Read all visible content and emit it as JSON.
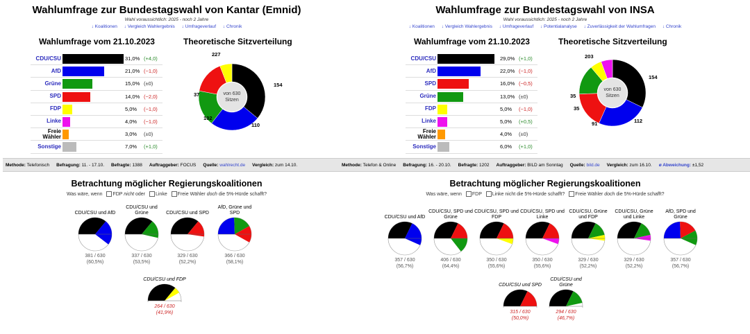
{
  "colors": {
    "cdu": "#000000",
    "afd": "#0000ee",
    "gruene": "#119911",
    "spd": "#ee1111",
    "fdp": "#ffff00",
    "linke": "#ee11ee",
    "fw": "#ff9900",
    "sonst": "#bbbbbb"
  },
  "left": {
    "title": "Wahlumfrage zur Bundestagswahl von Kantar (Emnid)",
    "subtitle": "Wahl voraussichtlich: 2025 - noch 2 Jahre",
    "links": [
      "↓ Koalitionen",
      "↓ Vergleich Wahlergebnis",
      "↓ Umfrageverlauf",
      "↓ Chronik"
    ],
    "poll_heading": "Wahlumfrage vom 21.10.2023",
    "seat_heading": "Theoretische Sitzverteilung",
    "parties": [
      {
        "name": "CDU/CSU",
        "pct": 31.0,
        "val": "31,0%",
        "chg": "(+4,0)",
        "dir": "pos",
        "color": "cdu"
      },
      {
        "name": "AfD",
        "pct": 21.0,
        "val": "21,0%",
        "chg": "(−1,0)",
        "dir": "neg",
        "color": "afd"
      },
      {
        "name": "Grüne",
        "pct": 15.0,
        "val": "15,0%",
        "chg": "(±0)",
        "dir": "neu",
        "color": "gruene"
      },
      {
        "name": "SPD",
        "pct": 14.0,
        "val": "14,0%",
        "chg": "(−2,0)",
        "dir": "neg",
        "color": "spd"
      },
      {
        "name": "FDP",
        "pct": 5.0,
        "val": "5,0%",
        "chg": "(−1,0)",
        "dir": "neg",
        "color": "fdp"
      },
      {
        "name": "Linke",
        "pct": 4.0,
        "val": "4,0%",
        "chg": "(−1,0)",
        "dir": "neg",
        "color": "linke"
      },
      {
        "name": "Freie Wähler",
        "pct": 3.0,
        "val": "3,0%",
        "chg": "(±0)",
        "dir": "neu",
        "color": "fw",
        "dark": true
      },
      {
        "name": "Sonstige",
        "pct": 7.0,
        "val": "7,0%",
        "chg": "(+1,0)",
        "dir": "pos",
        "color": "sonst"
      }
    ],
    "seats": {
      "center_line1": "von 630",
      "center_line2": "Sitzen",
      "segments": [
        {
          "party": "cdu",
          "seats": 227
        },
        {
          "party": "afd",
          "seats": 154
        },
        {
          "party": "gruene",
          "seats": 110
        },
        {
          "party": "spd",
          "seats": 102
        },
        {
          "party": "fdp",
          "seats": 37
        }
      ]
    },
    "info": {
      "methode_label": "Methode:",
      "methode": "Telefonisch",
      "befragung_label": "Befragung:",
      "befragung": "11. - 17.10.",
      "befragte_label": "Befragte:",
      "befragte": "1388",
      "auftrag_label": "Auftraggeber:",
      "auftrag": "FOCUS",
      "quelle_label": "Quelle:",
      "quelle": "wahlrecht.de",
      "vergleich_label": "Vergleich:",
      "vergleich": "zum 14.10."
    },
    "coalition_heading": "Betrachtung möglicher Regierungskoalitionen",
    "question": {
      "prefix": "Was wäre, wenn",
      "o1": "FDP",
      "o1b": "nicht",
      "o1c": "oder",
      "o2": "Linke",
      "o3": "Freie Wähler",
      "o3b": "doch",
      "o3c": "die 5%-Hürde schafft?"
    },
    "coalitions": [
      {
        "name": "CDU/CSU und AfD",
        "seats": "381 / 630",
        "pct": "(60,5%)",
        "parts": [
          {
            "p": "cdu",
            "s": 227
          },
          {
            "p": "afd",
            "s": 154
          }
        ]
      },
      {
        "name": "CDU/CSU und Grüne",
        "seats": "337 / 630",
        "pct": "(53,5%)",
        "parts": [
          {
            "p": "cdu",
            "s": 227
          },
          {
            "p": "gruene",
            "s": 110
          }
        ]
      },
      {
        "name": "CDU/CSU und SPD",
        "seats": "329 / 630",
        "pct": "(52,2%)",
        "parts": [
          {
            "p": "cdu",
            "s": 227
          },
          {
            "p": "spd",
            "s": 102
          }
        ]
      },
      {
        "name": "AfD, Grüne und SPD",
        "seats": "366 / 630",
        "pct": "(58,1%)",
        "parts": [
          {
            "p": "afd",
            "s": 154
          },
          {
            "p": "gruene",
            "s": 110
          },
          {
            "p": "spd",
            "s": 102
          }
        ]
      },
      {
        "name": "CDU/CSU und FDP",
        "seats": "264 / 630",
        "pct": "(41,9%)",
        "fail": true,
        "parts": [
          {
            "p": "cdu",
            "s": 227
          },
          {
            "p": "fdp",
            "s": 37
          }
        ]
      }
    ]
  },
  "right": {
    "title": "Wahlumfrage zur Bundestagswahl von INSA",
    "subtitle": "Wahl voraussichtlich: 2025 - noch 2 Jahre",
    "links": [
      "↓ Koalitionen",
      "↓ Vergleich Wahlergebnis",
      "↓ Umfrageverlauf",
      "↓ Potentialanalyse",
      "↓ Zuverlässigkeit der Wahlumfragen",
      "↓ Chronik"
    ],
    "poll_heading": "Wahlumfrage vom 21.10.2023",
    "seat_heading": "Theoretische Sitzverteilung",
    "parties": [
      {
        "name": "CDU/CSU",
        "pct": 29.0,
        "val": "29,0%",
        "chg": "(+1,0)",
        "dir": "pos",
        "color": "cdu"
      },
      {
        "name": "AfD",
        "pct": 22.0,
        "val": "22,0%",
        "chg": "(−1,0)",
        "dir": "neg",
        "color": "afd"
      },
      {
        "name": "SPD",
        "pct": 16.0,
        "val": "16,0%",
        "chg": "(−0,5)",
        "dir": "neg",
        "color": "spd"
      },
      {
        "name": "Grüne",
        "pct": 13.0,
        "val": "13,0%",
        "chg": "(±0)",
        "dir": "neu",
        "color": "gruene"
      },
      {
        "name": "FDP",
        "pct": 5.0,
        "val": "5,0%",
        "chg": "(−1,0)",
        "dir": "neg",
        "color": "fdp"
      },
      {
        "name": "Linke",
        "pct": 5.0,
        "val": "5,0%",
        "chg": "(+0,5)",
        "dir": "pos",
        "color": "linke"
      },
      {
        "name": "Freie Wähler",
        "pct": 4.0,
        "val": "4,0%",
        "chg": "(±0)",
        "dir": "neu",
        "color": "fw",
        "dark": true
      },
      {
        "name": "Sonstige",
        "pct": 6.0,
        "val": "6,0%",
        "chg": "(+1,0)",
        "dir": "pos",
        "color": "sonst"
      }
    ],
    "seats": {
      "center_line1": "von 630",
      "center_line2": "Sitzen",
      "segments": [
        {
          "party": "cdu",
          "seats": 203
        },
        {
          "party": "afd",
          "seats": 154
        },
        {
          "party": "spd",
          "seats": 112
        },
        {
          "party": "gruene",
          "seats": 91
        },
        {
          "party": "fdp",
          "seats": 35
        },
        {
          "party": "linke",
          "seats": 35
        }
      ]
    },
    "info": {
      "methode_label": "Methode:",
      "methode": "Telefon & Online",
      "befragung_label": "Befragung:",
      "befragung": "16. - 20.10.",
      "befragte_label": "Befragte:",
      "befragte": "1202",
      "auftrag_label": "Auftraggeber:",
      "auftrag": "BILD am Sonntag",
      "quelle_label": "Quelle:",
      "quelle": "bild.de",
      "vergleich_label": "Vergleich:",
      "vergleich": "zum 16.10.",
      "abw_label": "ø Abweichung:",
      "abw": "±1,52"
    },
    "coalition_heading": "Betrachtung möglicher Regierungskoalitionen",
    "question": {
      "prefix": "Was wäre, wenn",
      "o1": "FDP",
      "o2": "Linke nicht",
      "o2b": "die 5%-Hürde schafft?",
      "o3": "Freie Wähler",
      "o3b": "doch",
      "o3c": "die 5%-Hürde schafft?"
    },
    "coalitions": [
      {
        "name": "CDU/CSU und AfD",
        "seats": "357 / 630",
        "pct": "(56,7%)",
        "parts": [
          {
            "p": "cdu",
            "s": 203
          },
          {
            "p": "afd",
            "s": 154
          }
        ]
      },
      {
        "name": "CDU/CSU, SPD und Grüne",
        "seats": "406 / 630",
        "pct": "(64,4%)",
        "parts": [
          {
            "p": "cdu",
            "s": 203
          },
          {
            "p": "spd",
            "s": 112
          },
          {
            "p": "gruene",
            "s": 91
          }
        ]
      },
      {
        "name": "CDU/CSU, SPD und FDP",
        "seats": "350 / 630",
        "pct": "(55,6%)",
        "parts": [
          {
            "p": "cdu",
            "s": 203
          },
          {
            "p": "spd",
            "s": 112
          },
          {
            "p": "fdp",
            "s": 35
          }
        ]
      },
      {
        "name": "CDU/CSU, SPD und Linke",
        "seats": "350 / 630",
        "pct": "(55,6%)",
        "parts": [
          {
            "p": "cdu",
            "s": 203
          },
          {
            "p": "spd",
            "s": 112
          },
          {
            "p": "linke",
            "s": 35
          }
        ]
      },
      {
        "name": "CDU/CSU, Grüne und FDP",
        "seats": "329 / 630",
        "pct": "(52,2%)",
        "parts": [
          {
            "p": "cdu",
            "s": 203
          },
          {
            "p": "gruene",
            "s": 91
          },
          {
            "p": "fdp",
            "s": 35
          }
        ]
      },
      {
        "name": "CDU/CSU, Grüne und Linke",
        "seats": "329 / 630",
        "pct": "(52,2%)",
        "parts": [
          {
            "p": "cdu",
            "s": 203
          },
          {
            "p": "gruene",
            "s": 91
          },
          {
            "p": "linke",
            "s": 35
          }
        ]
      },
      {
        "name": "AfD, SPD und Grüne",
        "seats": "357 / 630",
        "pct": "(56,7%)",
        "parts": [
          {
            "p": "afd",
            "s": 154
          },
          {
            "p": "spd",
            "s": 112
          },
          {
            "p": "gruene",
            "s": 91
          }
        ]
      },
      {
        "name": "CDU/CSU und SPD",
        "seats": "315 / 630",
        "pct": "(50,0%)",
        "fail": true,
        "parts": [
          {
            "p": "cdu",
            "s": 203
          },
          {
            "p": "spd",
            "s": 112
          }
        ]
      },
      {
        "name": "CDU/CSU und Grüne",
        "seats": "294 / 630",
        "pct": "(46,7%)",
        "fail": true,
        "parts": [
          {
            "p": "cdu",
            "s": 203
          },
          {
            "p": "gruene",
            "s": 91
          }
        ]
      }
    ]
  }
}
